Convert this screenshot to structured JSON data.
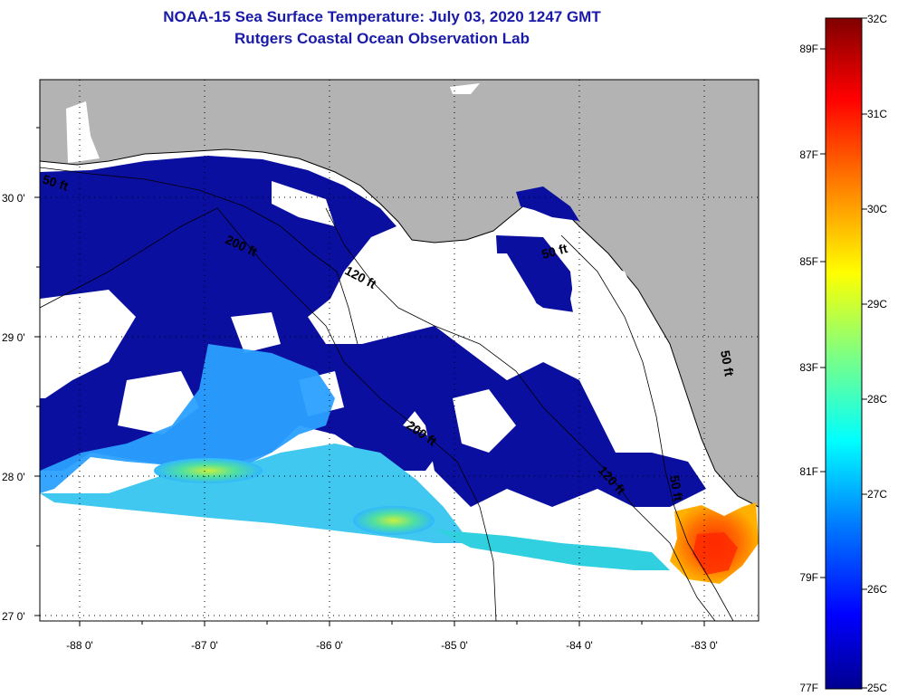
{
  "header": {
    "title": "NOAA-15 Sea Surface Temperature:  July 03, 2020 1247 GMT",
    "subtitle": "Rutgers Coastal Ocean Observation Lab"
  },
  "map": {
    "longitude_labels": [
      "-88 0'",
      "-87 0'",
      "-86 0'",
      "-85 0'",
      "-84 0'",
      "-83 0'"
    ],
    "latitude_labels": [
      "30 0'",
      "29 0'",
      "28 0'",
      "27 0'"
    ],
    "depth_contour_labels": [
      "50 ft",
      "200 ft",
      "120 ft",
      "50 ft",
      "200 ft",
      "120 ft",
      "50 ft",
      "50 ft"
    ]
  },
  "colorbar": {
    "celsius_labels": [
      "32C",
      "31C",
      "30C",
      "29C",
      "28C",
      "27C",
      "26C",
      "25C"
    ],
    "fahrenheit_labels": [
      "89F",
      "87F",
      "85F",
      "83F",
      "81F",
      "79F",
      "77F"
    ],
    "colors": [
      "#00008f",
      "#0000ff",
      "#0080ff",
      "#00ffff",
      "#80ff80",
      "#ffff00",
      "#ff8000",
      "#ff0000",
      "#800000"
    ]
  },
  "legend_colors": {
    "land": "#b3b3b3",
    "no_data": "#ffffff"
  }
}
